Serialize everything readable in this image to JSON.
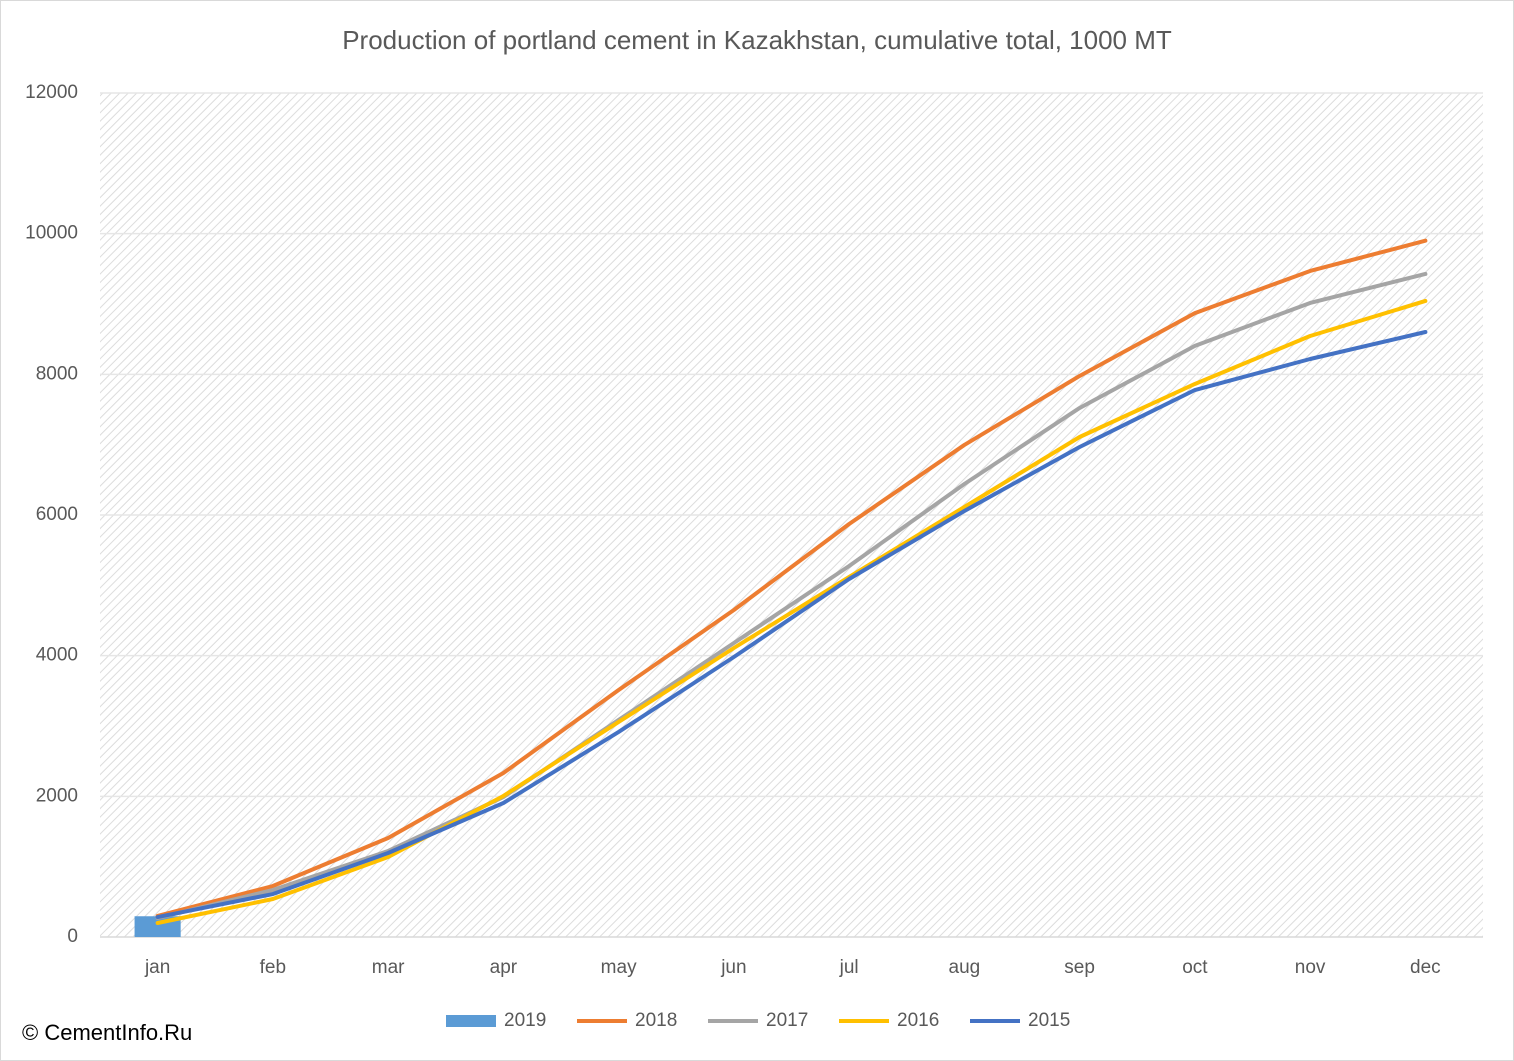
{
  "chart_data": {
    "type": "line",
    "title": "Production of portland cement in Kazakhstan, cumulative total, 1000 MT",
    "annotations": [
      "© CementInfo.Ru"
    ],
    "categories": [
      "jan",
      "feb",
      "mar",
      "apr",
      "may",
      "jun",
      "jul",
      "aug",
      "sep",
      "oct",
      "nov",
      "dec"
    ],
    "ylim": [
      0,
      12000
    ],
    "yticks": [
      0,
      2000,
      4000,
      6000,
      8000,
      10000,
      12000
    ],
    "grid": true,
    "legend": "bottom",
    "series": [
      {
        "name": "2019",
        "type": "bar",
        "color": "#5b9bd5",
        "values": [
          295,
          null,
          null,
          null,
          null,
          null,
          null,
          null,
          null,
          null,
          null,
          null
        ]
      },
      {
        "name": "2018",
        "type": "line",
        "color": "#ed7d31",
        "values": [
          300,
          725,
          1408,
          2332,
          3512,
          4649,
          5872,
          6996,
          7977,
          8870,
          9470,
          9900
        ]
      },
      {
        "name": "2017",
        "type": "line",
        "color": "#a5a5a5",
        "values": [
          270,
          668,
          1223,
          1990,
          3086,
          4180,
          5275,
          6441,
          7522,
          8404,
          9015,
          9427
        ]
      },
      {
        "name": "2016",
        "type": "line",
        "color": "#ffc000",
        "values": [
          199,
          540,
          1137,
          2005,
          3057,
          4109,
          5119,
          6114,
          7109,
          7863,
          8545,
          9043
        ]
      },
      {
        "name": "2015",
        "type": "line",
        "color": "#4472c4",
        "values": [
          284,
          611,
          1194,
          1905,
          2915,
          3981,
          5090,
          6057,
          6967,
          7777,
          8218,
          8602
        ]
      }
    ]
  }
}
